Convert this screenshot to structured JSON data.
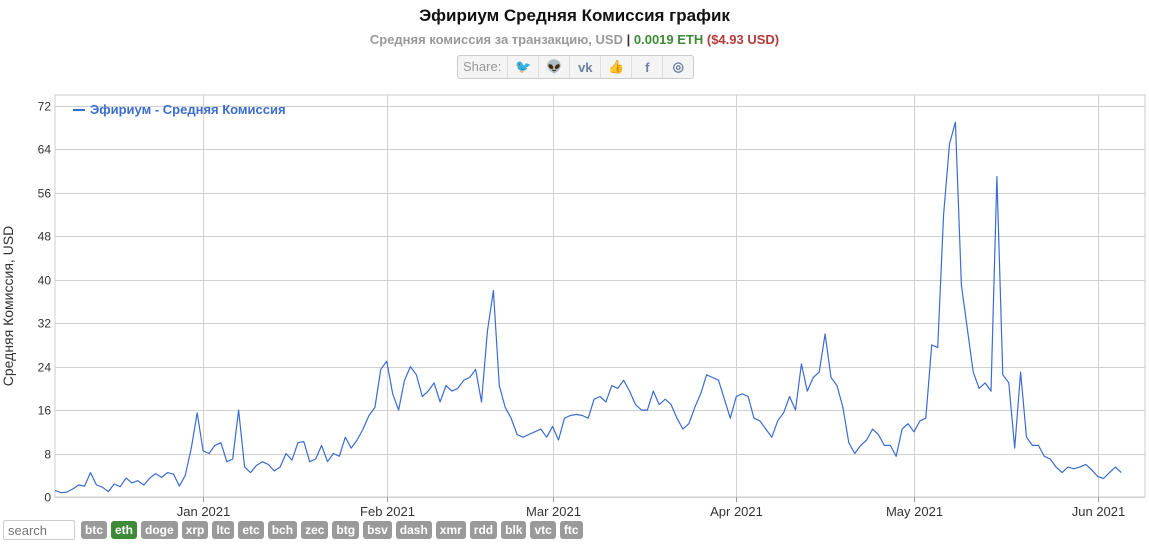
{
  "header": {
    "title": "Эфириум Средняя Комиссия график",
    "subtitle_text": "Средняя комиссия за транзакцию, USD",
    "subtitle_sep": "|",
    "subtitle_eth": "0.0019 ETH",
    "subtitle_usd": "($4.93 USD)"
  },
  "share": {
    "label": "Share:",
    "buttons": [
      {
        "name": "twitter-icon",
        "glyph": "🐦"
      },
      {
        "name": "reddit-icon",
        "glyph": "👽"
      },
      {
        "name": "vk-icon",
        "glyph": "vk"
      },
      {
        "name": "like-icon",
        "glyph": "👍"
      },
      {
        "name": "facebook-icon",
        "glyph": "f"
      },
      {
        "name": "weibo-icon",
        "glyph": "◎"
      }
    ]
  },
  "search": {
    "placeholder": "search"
  },
  "coins": [
    {
      "label": "btc",
      "active": false
    },
    {
      "label": "eth",
      "active": true
    },
    {
      "label": "doge",
      "active": false
    },
    {
      "label": "xrp",
      "active": false
    },
    {
      "label": "ltc",
      "active": false
    },
    {
      "label": "etc",
      "active": false
    },
    {
      "label": "bch",
      "active": false
    },
    {
      "label": "zec",
      "active": false
    },
    {
      "label": "btg",
      "active": false
    },
    {
      "label": "bsv",
      "active": false
    },
    {
      "label": "dash",
      "active": false
    },
    {
      "label": "xmr",
      "active": false
    },
    {
      "label": "rdd",
      "active": false
    },
    {
      "label": "blk",
      "active": false
    },
    {
      "label": "vtc",
      "active": false
    },
    {
      "label": "ftc",
      "active": false
    }
  ],
  "chart_data": {
    "type": "line",
    "title": "Эфириум Средняя Комиссия график",
    "ylabel": "Средняя Комиссия, USD",
    "xlabel": "",
    "ylim": [
      0,
      74
    ],
    "yticks": [
      0,
      8,
      16,
      24,
      32,
      40,
      48,
      56,
      64,
      72
    ],
    "xlim": [
      "2020-12-07",
      "2021-06-09"
    ],
    "xticks": [
      {
        "date": "2021-01-01",
        "label": "Jan 2021"
      },
      {
        "date": "2021-02-01",
        "label": "Feb 2021"
      },
      {
        "date": "2021-03-01",
        "label": "Mar 2021"
      },
      {
        "date": "2021-04-01",
        "label": "Apr 2021"
      },
      {
        "date": "2021-05-01",
        "label": "May 2021"
      },
      {
        "date": "2021-06-01",
        "label": "Jun 2021"
      }
    ],
    "grid": true,
    "legend_position": "top-left",
    "series": [
      {
        "name": "Эфириум - Средняя Комиссия",
        "color": "#3b6ccf",
        "start_date": "2020-12-07",
        "values": [
          1.2,
          0.8,
          0.9,
          1.5,
          2.2,
          2.0,
          4.5,
          2.2,
          1.8,
          1.0,
          2.4,
          1.9,
          3.5,
          2.6,
          3.0,
          2.2,
          3.5,
          4.3,
          3.6,
          4.5,
          4.2,
          2.0,
          4.0,
          9.0,
          15.5,
          8.5,
          8.0,
          9.5,
          10.0,
          6.5,
          7.0,
          16.0,
          5.5,
          4.5,
          5.8,
          6.5,
          6.0,
          4.8,
          5.5,
          8.0,
          6.8,
          10.0,
          10.2,
          6.5,
          7.0,
          9.5,
          6.5,
          8.0,
          7.5,
          11.0,
          9.0,
          10.5,
          12.5,
          15.0,
          16.5,
          23.5,
          25.0,
          19.0,
          16.0,
          21.5,
          24.0,
          22.5,
          18.5,
          19.5,
          21.0,
          17.5,
          20.5,
          19.5,
          20.0,
          21.5,
          22.0,
          23.5,
          17.5,
          30.5,
          38.0,
          20.5,
          16.5,
          14.5,
          11.5,
          11.0,
          11.5,
          12.0,
          12.5,
          11.0,
          13.0,
          10.5,
          14.5,
          15.0,
          15.2,
          15.0,
          14.5,
          18.0,
          18.5,
          17.5,
          20.5,
          20.0,
          21.5,
          19.5,
          17.0,
          16.0,
          16.0,
          19.5,
          17.0,
          18.0,
          17.0,
          14.5,
          12.5,
          13.5,
          16.5,
          19.0,
          22.5,
          22.0,
          21.5,
          18.0,
          14.5,
          18.5,
          19.0,
          18.5,
          14.5,
          14.0,
          12.5,
          11.0,
          14.0,
          15.5,
          18.5,
          16.0,
          24.5,
          19.5,
          22.0,
          23.0,
          30.0,
          22.0,
          20.5,
          16.5,
          10.0,
          8.0,
          9.5,
          10.5,
          12.5,
          11.5,
          9.5,
          9.5,
          7.5,
          12.5,
          13.5,
          12.0,
          14.0,
          14.5,
          28.0,
          27.5,
          52.0,
          65.0,
          69.0,
          39.0,
          31.0,
          23.0,
          20.0,
          21.0,
          19.5,
          59.0,
          22.5,
          21.0,
          9.0,
          23.0,
          11.0,
          9.5,
          9.5,
          7.5,
          7.0,
          5.5,
          4.5,
          5.5,
          5.2,
          5.5,
          6.0,
          5.0,
          3.8,
          3.4,
          4.5,
          5.5,
          4.5
        ]
      }
    ]
  }
}
